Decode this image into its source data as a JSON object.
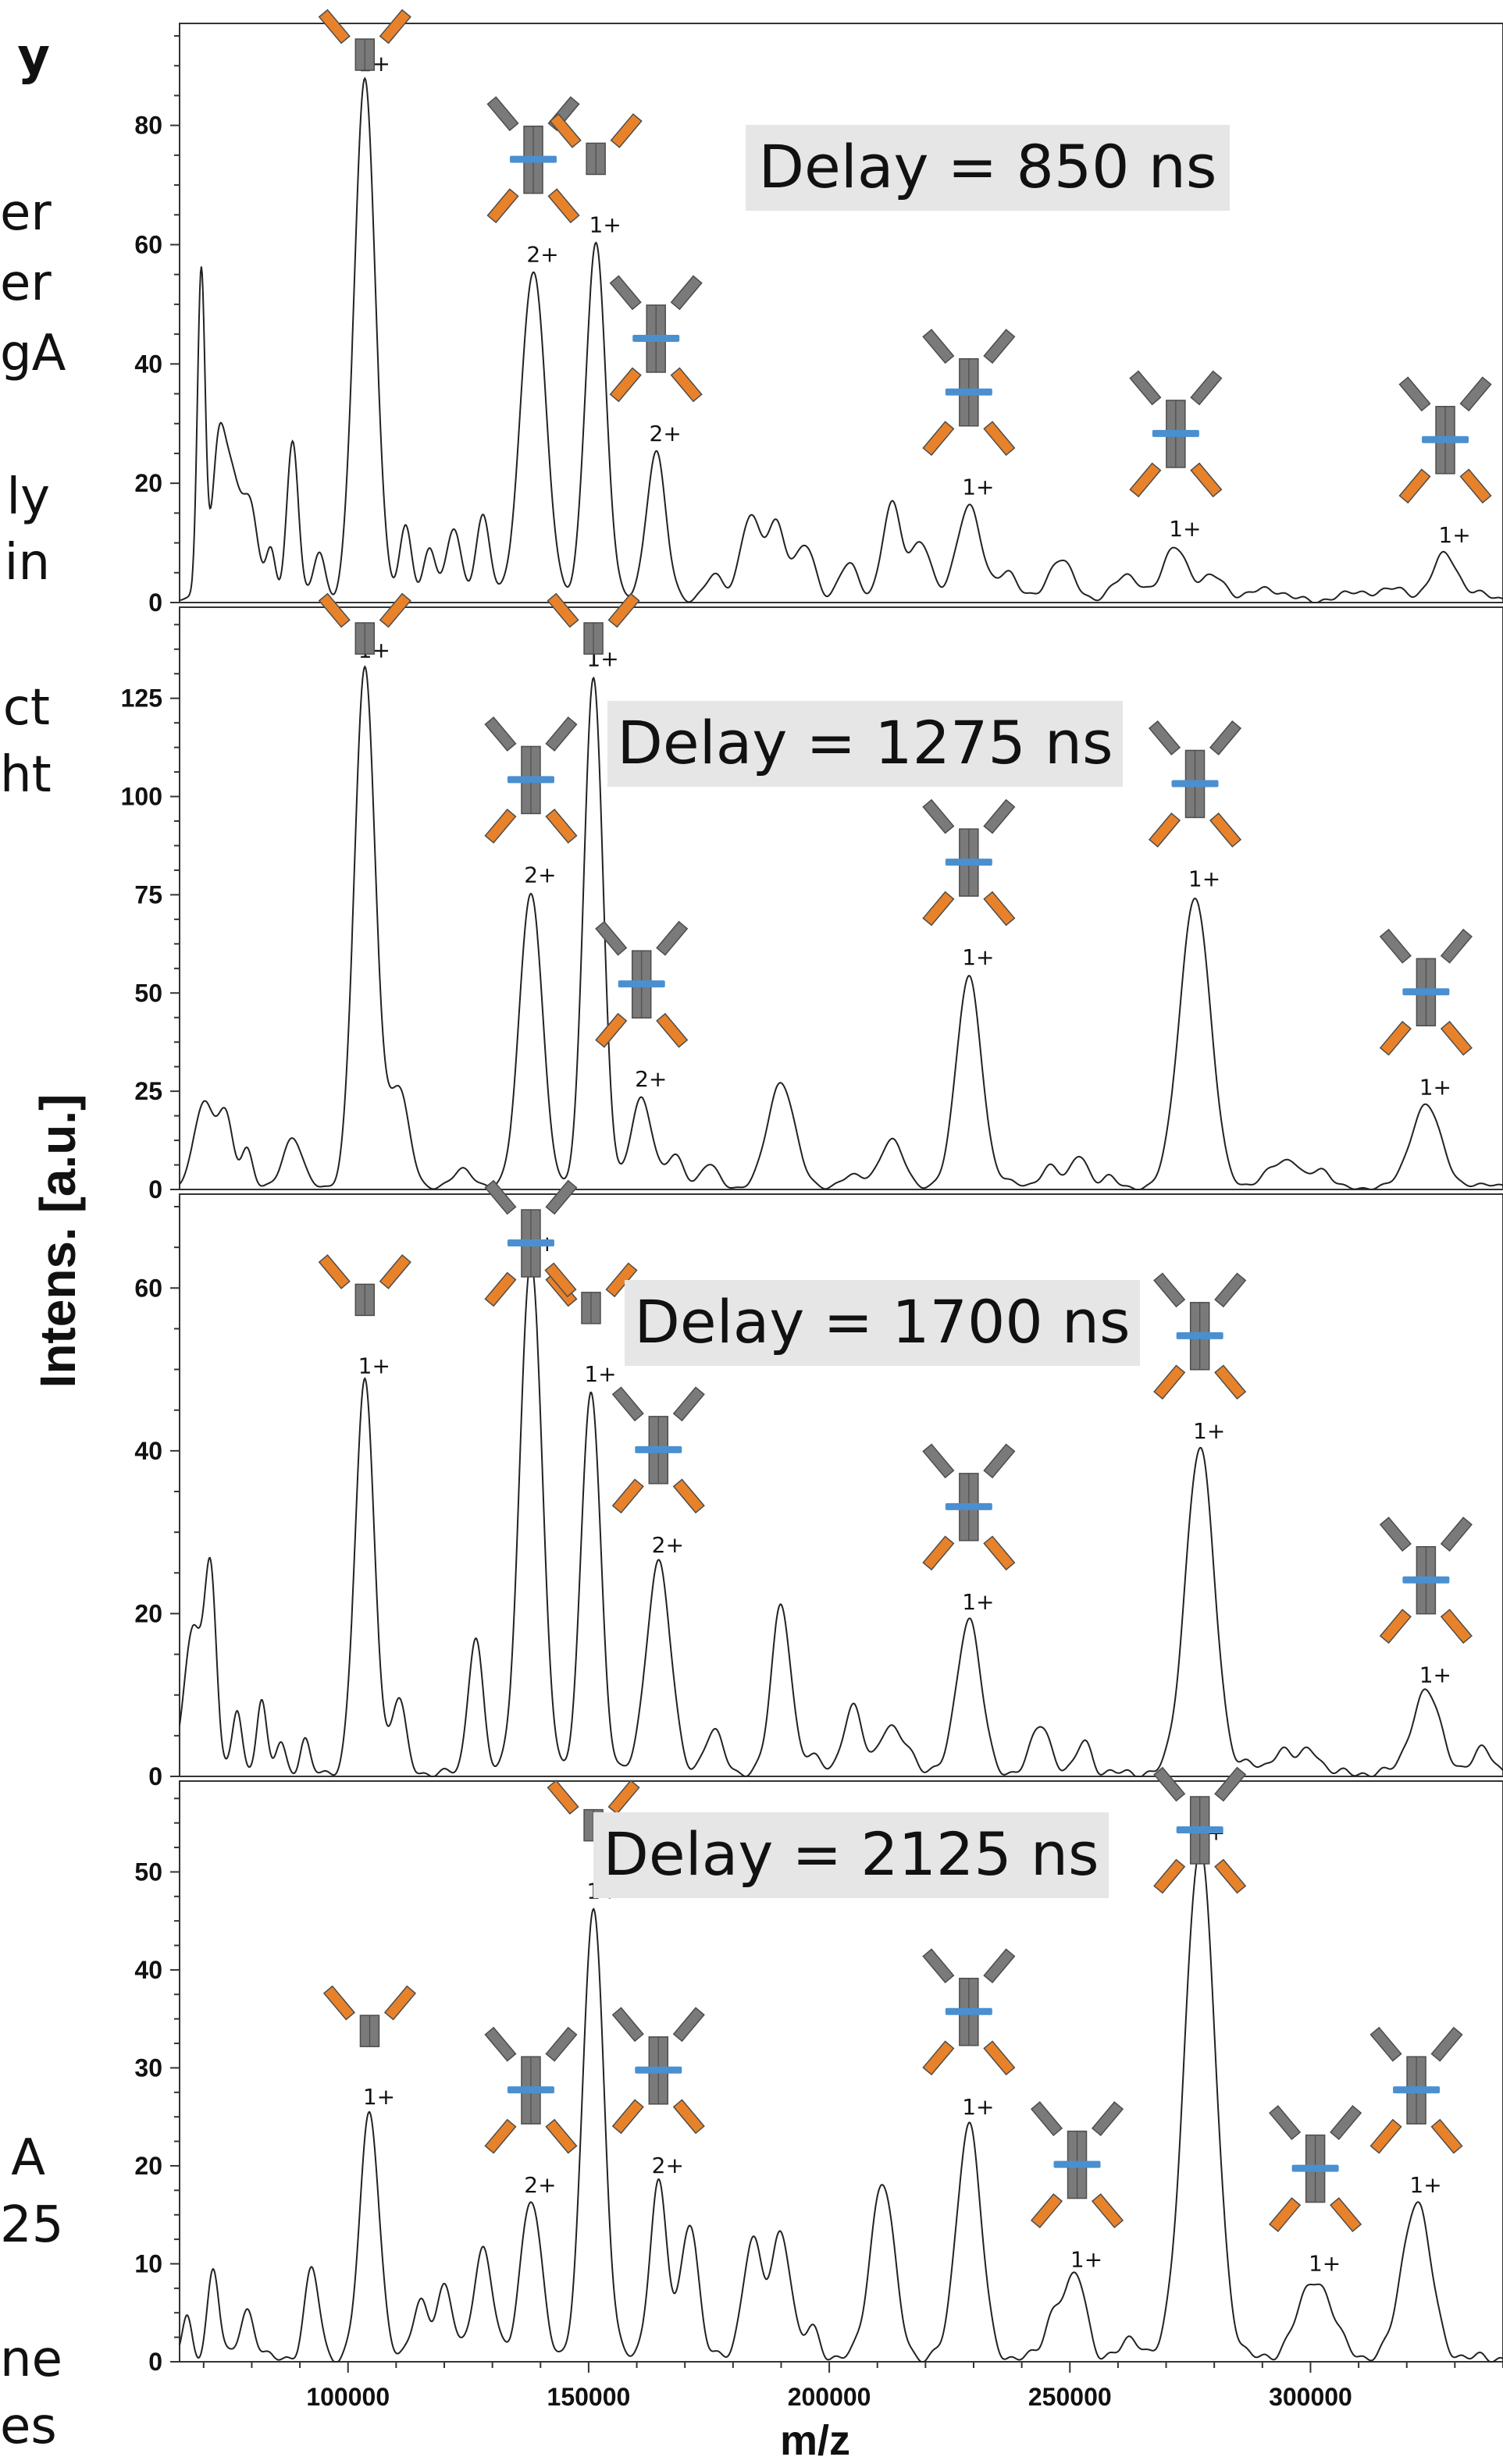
{
  "left_text_fragments": [
    "y",
    "er",
    "er",
    "gA",
    "ly",
    "in",
    "ct",
    "ht",
    "A",
    "25",
    "ne",
    "es"
  ],
  "colors": {
    "grey": "#7a7a7a",
    "orange": "#e8822a",
    "blue": "#4a90d0",
    "line": "#222222",
    "delay_box": "#e6e6e6"
  },
  "chart_data": {
    "type": "line",
    "xlabel": "m/z",
    "ylabel": "Intens. [a.u.]",
    "xlim": [
      65000,
      340000
    ],
    "x_ticks": [
      100000,
      150000,
      200000,
      250000,
      300000
    ],
    "x_tick_labels": [
      "100000",
      "150000",
      "200000",
      "250000",
      "300000"
    ],
    "panels": [
      {
        "title": "Delay = 850 ns",
        "ylim": [
          0,
          95
        ],
        "y_ticks": [
          0,
          20,
          40,
          60,
          80
        ],
        "y_tick_labels": [
          "0",
          "20",
          "40",
          "60",
          "80"
        ],
        "peaks": [
          [
            69500,
            55,
            800
          ],
          [
            73000,
            15,
            1200
          ],
          [
            75500,
            22,
            2500
          ],
          [
            80000,
            12,
            1500
          ],
          [
            84000,
            8,
            1000
          ],
          [
            88500,
            27,
            1200
          ],
          [
            94000,
            8,
            1200
          ],
          [
            103500,
            87,
            2200
          ],
          [
            112000,
            12,
            1300
          ],
          [
            117000,
            9,
            1300
          ],
          [
            122000,
            12,
            1500
          ],
          [
            128000,
            14,
            1500
          ],
          [
            138500,
            55,
            2600
          ],
          [
            151500,
            60,
            2100
          ],
          [
            164000,
            25,
            2000
          ],
          [
            176000,
            4,
            2000
          ],
          [
            183500,
            14,
            2000
          ],
          [
            189000,
            13,
            2000
          ],
          [
            195000,
            9,
            2000
          ],
          [
            204000,
            6,
            2000
          ],
          [
            213000,
            16,
            2000
          ],
          [
            219000,
            10,
            2000
          ],
          [
            229000,
            16,
            2500
          ],
          [
            237000,
            5,
            2000
          ],
          [
            248000,
            7,
            2500
          ],
          [
            262000,
            4,
            3000
          ],
          [
            272000,
            9,
            2500
          ],
          [
            280000,
            4,
            2500
          ],
          [
            291000,
            2,
            3000
          ],
          [
            310000,
            1.5,
            3000
          ],
          [
            318000,
            2,
            2500
          ],
          [
            328000,
            8,
            2500
          ],
          [
            336000,
            1,
            2500
          ]
        ],
        "annotations": [
          {
            "mz": 103500,
            "label": "1+",
            "variant": "arm"
          },
          {
            "mz": 138500,
            "label": "2+",
            "variant": "full"
          },
          {
            "mz": 151500,
            "label": "1+",
            "variant": "arm"
          },
          {
            "mz": 164000,
            "label": "2+",
            "variant": "full"
          },
          {
            "mz": 229000,
            "label": "1+",
            "variant": "full"
          },
          {
            "mz": 272000,
            "label": "1+",
            "variant": "full"
          },
          {
            "mz": 328000,
            "label": "1+",
            "variant": "full"
          }
        ]
      },
      {
        "title": "Delay = 1275 ns",
        "ylim": [
          0,
          145
        ],
        "y_ticks": [
          0,
          25,
          50,
          75,
          100,
          125
        ],
        "y_tick_labels": [
          "0",
          "25",
          "50",
          "75",
          "100",
          "125"
        ],
        "peaks": [
          [
            70000,
            22,
            2000
          ],
          [
            74500,
            18,
            1600
          ],
          [
            79000,
            10,
            1200
          ],
          [
            88500,
            13,
            2000
          ],
          [
            103500,
            132,
            2200
          ],
          [
            110500,
            25,
            2200
          ],
          [
            124000,
            5,
            2000
          ],
          [
            138000,
            75,
            2400
          ],
          [
            151000,
            130,
            2000
          ],
          [
            161000,
            23,
            2200
          ],
          [
            168000,
            8,
            1800
          ],
          [
            175000,
            6,
            1800
          ],
          [
            190000,
            27,
            2800
          ],
          [
            205000,
            3,
            2500
          ],
          [
            213000,
            12,
            2500
          ],
          [
            229000,
            54,
            2600
          ],
          [
            237000,
            2,
            2000
          ],
          [
            246000,
            6,
            1800
          ],
          [
            252000,
            8,
            1800
          ],
          [
            258000,
            3,
            1500
          ],
          [
            276000,
            74,
            3200
          ],
          [
            292000,
            5,
            2000
          ],
          [
            296000,
            6,
            2000
          ],
          [
            302000,
            5,
            2000
          ],
          [
            324000,
            21,
            3200
          ],
          [
            338000,
            1,
            2500
          ]
        ],
        "annotations": [
          {
            "mz": 103500,
            "label": "1+",
            "variant": "arm"
          },
          {
            "mz": 138000,
            "label": "2+",
            "variant": "full"
          },
          {
            "mz": 151000,
            "label": "1+",
            "variant": "arm"
          },
          {
            "mz": 161000,
            "label": "2+",
            "variant": "full"
          },
          {
            "mz": 229000,
            "label": "1+",
            "variant": "full"
          },
          {
            "mz": 276000,
            "label": "1+",
            "variant": "full"
          },
          {
            "mz": 324000,
            "label": "1+",
            "variant": "full"
          }
        ]
      },
      {
        "title": "Delay = 1700 ns",
        "ylim": [
          0,
          70
        ],
        "y_ticks": [
          0,
          20,
          40,
          60
        ],
        "y_tick_labels": [
          "0",
          "20",
          "40",
          "60"
        ],
        "peaks": [
          [
            68000,
            18,
            2000
          ],
          [
            71500,
            22,
            1200
          ],
          [
            77000,
            8,
            1000
          ],
          [
            82000,
            9,
            1000
          ],
          [
            86000,
            4,
            1000
          ],
          [
            91000,
            4,
            1000
          ],
          [
            103500,
            48,
            2000
          ],
          [
            110500,
            9,
            1500
          ],
          [
            126500,
            17,
            1500
          ],
          [
            138000,
            63,
            2300
          ],
          [
            150500,
            47,
            2000
          ],
          [
            164500,
            26,
            2500
          ],
          [
            176000,
            5,
            2000
          ],
          [
            190000,
            21,
            2000
          ],
          [
            197000,
            2,
            2000
          ],
          [
            205000,
            8,
            2000
          ],
          [
            212000,
            5,
            2000
          ],
          [
            216000,
            3,
            2000
          ],
          [
            229000,
            19,
            2500
          ],
          [
            244000,
            6,
            2000
          ],
          [
            253000,
            4,
            1500
          ],
          [
            277000,
            40,
            3000
          ],
          [
            287000,
            1,
            2000
          ],
          [
            294000,
            3,
            2000
          ],
          [
            300000,
            3,
            2000
          ],
          [
            324000,
            10,
            3000
          ],
          [
            336000,
            3,
            2000
          ]
        ],
        "annotations": [
          {
            "mz": 103500,
            "label": "1+",
            "variant": "arm"
          },
          {
            "mz": 138000,
            "label": "2+",
            "variant": "full"
          },
          {
            "mz": 150500,
            "label": "1+",
            "variant": "arm"
          },
          {
            "mz": 164500,
            "label": "2+",
            "variant": "full"
          },
          {
            "mz": 229000,
            "label": "1+",
            "variant": "full"
          },
          {
            "mz": 277000,
            "label": "1+",
            "variant": "full"
          },
          {
            "mz": 324000,
            "label": "1+",
            "variant": "full"
          }
        ]
      },
      {
        "title": "Delay = 2125 ns",
        "ylim": [
          0,
          58
        ],
        "y_ticks": [
          0,
          10,
          20,
          30,
          40,
          50
        ],
        "y_tick_labels": [
          "0",
          "10",
          "20",
          "30",
          "40",
          "50"
        ],
        "peaks": [
          [
            66500,
            4,
            1000
          ],
          [
            72000,
            9,
            1200
          ],
          [
            79000,
            5,
            1500
          ],
          [
            92500,
            9,
            1500
          ],
          [
            104500,
            25,
            2000
          ],
          [
            115000,
            6,
            1500
          ],
          [
            120000,
            7,
            1800
          ],
          [
            128000,
            11,
            2000
          ],
          [
            138000,
            16,
            2200
          ],
          [
            151000,
            46,
            2200
          ],
          [
            164500,
            18,
            1800
          ],
          [
            171000,
            14,
            1800
          ],
          [
            184000,
            12,
            2000
          ],
          [
            190000,
            13,
            2000
          ],
          [
            196500,
            3,
            1500
          ],
          [
            211000,
            18,
            2500
          ],
          [
            229000,
            24,
            2500
          ],
          [
            247000,
            5,
            2000
          ],
          [
            251500,
            8,
            2000
          ],
          [
            263000,
            2,
            2000
          ],
          [
            277000,
            52,
            3200
          ],
          [
            301000,
            8,
            3500
          ],
          [
            322000,
            16,
            3000
          ]
        ],
        "annotations": [
          {
            "mz": 104500,
            "label": "1+",
            "variant": "arm"
          },
          {
            "mz": 138000,
            "label": "2+",
            "variant": "full"
          },
          {
            "mz": 151000,
            "label": "1+",
            "variant": "arm"
          },
          {
            "mz": 164500,
            "label": "2+",
            "variant": "full"
          },
          {
            "mz": 229000,
            "label": "1+",
            "variant": "full"
          },
          {
            "mz": 251500,
            "label": "1+",
            "variant": "full"
          },
          {
            "mz": 277000,
            "label": "1+",
            "variant": "full"
          },
          {
            "mz": 301000,
            "label": "1+",
            "variant": "full"
          },
          {
            "mz": 322000,
            "label": "1+",
            "variant": "full"
          }
        ]
      }
    ]
  }
}
